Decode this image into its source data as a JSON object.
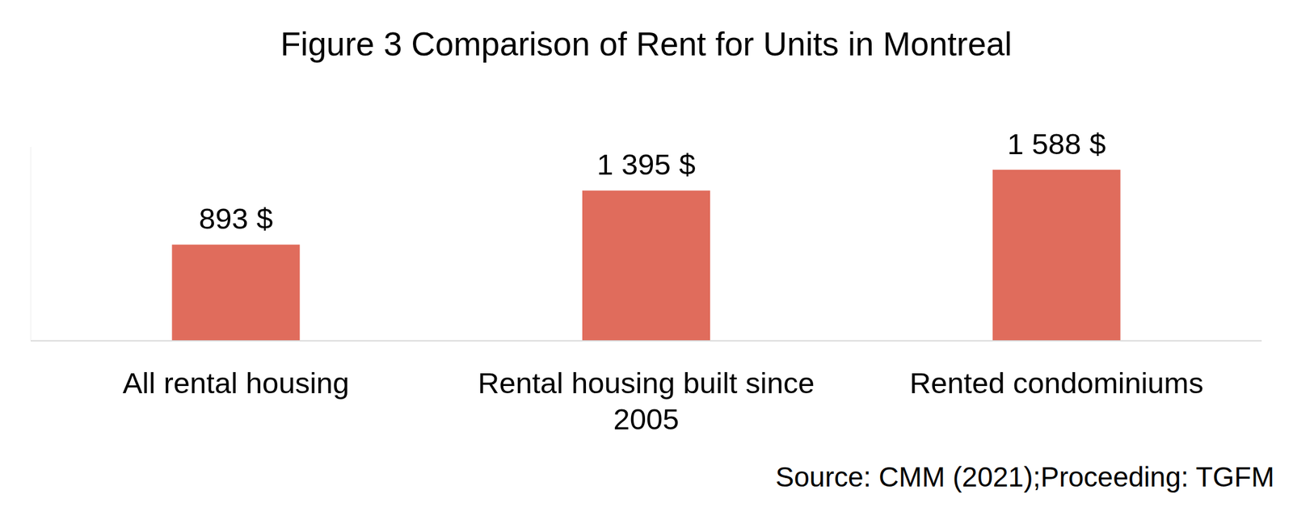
{
  "chart_data": {
    "type": "bar",
    "title": "Figure 3 Comparison of Rent for Units in Montreal",
    "categories": [
      "All rental housing",
      "Rental housing built since 2005",
      "Rented condominiums"
    ],
    "values": [
      893,
      1395,
      1588
    ],
    "value_labels": [
      "893 $",
      "1 395 $",
      "1 588 $"
    ],
    "color": "#e06c5c",
    "ylim": [
      0,
      1800
    ],
    "data_labels": true,
    "tick_labels": "x",
    "grid": false,
    "source": "Source: CMM (2021);Proceeding: TGFM"
  }
}
